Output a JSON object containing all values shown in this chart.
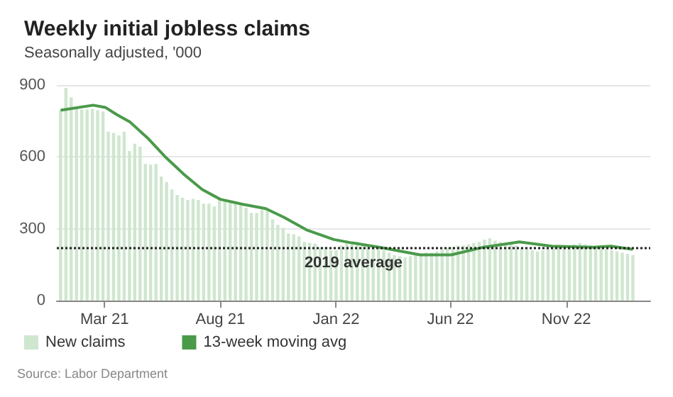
{
  "chart_data": {
    "type": "bar",
    "title": "Weekly initial jobless claims",
    "subtitle": "Seasonally adjusted, '000",
    "annotations": [
      "Source: Labor Department"
    ],
    "x": [
      "2021-01-02",
      "2021-01-09",
      "2021-01-16",
      "2021-01-23",
      "2021-01-30",
      "2021-02-06",
      "2021-02-13",
      "2021-02-20",
      "2021-02-27",
      "2021-03-06",
      "2021-03-13",
      "2021-03-20",
      "2021-03-27",
      "2021-04-03",
      "2021-04-10",
      "2021-04-17",
      "2021-04-24",
      "2021-05-01",
      "2021-05-08",
      "2021-05-15",
      "2021-05-22",
      "2021-05-29",
      "2021-06-05",
      "2021-06-12",
      "2021-06-19",
      "2021-06-26",
      "2021-07-03",
      "2021-07-10",
      "2021-07-17",
      "2021-07-24",
      "2021-07-31",
      "2021-08-07",
      "2021-08-14",
      "2021-08-21",
      "2021-08-28",
      "2021-09-04",
      "2021-09-11",
      "2021-09-18",
      "2021-09-25",
      "2021-10-02",
      "2021-10-09",
      "2021-10-16",
      "2021-10-23",
      "2021-10-30",
      "2021-11-06",
      "2021-11-13",
      "2021-11-20",
      "2021-11-27",
      "2021-12-04",
      "2021-12-11",
      "2021-12-18",
      "2021-12-25",
      "2022-01-01",
      "2022-01-08",
      "2022-01-15",
      "2022-01-22",
      "2022-01-29",
      "2022-02-05",
      "2022-02-12",
      "2022-02-19",
      "2022-02-26",
      "2022-03-05",
      "2022-03-12",
      "2022-03-19",
      "2022-03-26",
      "2022-04-02",
      "2022-04-09",
      "2022-04-16",
      "2022-04-23",
      "2022-04-30",
      "2022-05-07",
      "2022-05-14",
      "2022-05-21",
      "2022-05-28",
      "2022-06-04",
      "2022-06-11",
      "2022-06-18",
      "2022-06-25",
      "2022-07-02",
      "2022-07-09",
      "2022-07-16",
      "2022-07-23",
      "2022-07-30",
      "2022-08-06",
      "2022-08-13",
      "2022-08-20",
      "2022-08-27",
      "2022-09-03",
      "2022-09-10",
      "2022-09-17",
      "2022-09-24",
      "2022-10-01",
      "2022-10-08",
      "2022-10-15",
      "2022-10-22",
      "2022-10-29",
      "2022-11-05",
      "2022-11-12",
      "2022-11-19",
      "2022-11-26",
      "2022-12-03",
      "2022-12-10",
      "2022-12-17",
      "2022-12-24",
      "2022-12-31",
      "2023-01-07",
      "2023-01-14",
      "2023-01-21",
      "2023-01-28"
    ],
    "series": [
      {
        "name": "New claims",
        "color": "#cfe6cf",
        "values": [
          795,
          888,
          848,
          804,
          798,
          798,
          800,
          795,
          790,
          705,
          700,
          690,
          705,
          625,
          655,
          643,
          571,
          568,
          571,
          518,
          495,
          464,
          441,
          429,
          420,
          425,
          420,
          405,
          405,
          393,
          420,
          416,
          411,
          407,
          402,
          388,
          366,
          366,
          379,
          375,
          339,
          316,
          304,
          280,
          277,
          268,
          245,
          241,
          238,
          223,
          225,
          210,
          210,
          230,
          250,
          240,
          245,
          230,
          225,
          220,
          215,
          210,
          200,
          190,
          185,
          180,
          185,
          190,
          195,
          200,
          200,
          205,
          215,
          220,
          225,
          230,
          230,
          235,
          240,
          245,
          255,
          260,
          250,
          245,
          240,
          235,
          230,
          220,
          215,
          210,
          205,
          210,
          215,
          220,
          225,
          230,
          230,
          235,
          240,
          235,
          230,
          225,
          220,
          215,
          210,
          205,
          200,
          195,
          190
        ]
      },
      {
        "name": "13-week moving avg",
        "type": "line",
        "color": "#4a9a4a",
        "x": [
          "2021-01-02",
          "2021-02-14",
          "2021-03-02",
          "2021-03-17",
          "2021-04-04",
          "2021-04-27",
          "2021-05-21",
          "2021-06-14",
          "2021-07-08",
          "2021-08-01",
          "2021-08-31",
          "2021-09-30",
          "2021-10-24",
          "2021-11-23",
          "2021-12-29",
          "2022-01-22",
          "2022-02-27",
          "2022-04-22",
          "2022-06-02",
          "2022-07-15",
          "2022-08-31",
          "2022-10-13",
          "2022-12-06",
          "2022-12-30",
          "2023-01-28"
        ],
        "values": [
          795,
          816,
          807,
          777,
          745,
          679,
          598,
          527,
          464,
          423,
          402,
          384,
          348,
          295,
          255,
          241,
          223,
          191,
          191,
          223,
          245,
          227,
          223,
          227,
          214
        ]
      }
    ],
    "xlim": [
      "2020-12-28",
      "2023-02-20"
    ],
    "xticks": [
      {
        "value": "2021-03-01",
        "label": "Mar 21"
      },
      {
        "value": "2021-08-01",
        "label": "Aug 21"
      },
      {
        "value": "2022-01-01",
        "label": "Jan 22"
      },
      {
        "value": "2022-06-01",
        "label": "Jun 22"
      },
      {
        "value": "2022-11-01",
        "label": "Nov 22"
      }
    ],
    "ylim": [
      0,
      900
    ],
    "yticks": [
      0,
      300,
      600,
      900
    ],
    "ref_lines": [
      {
        "axis": "y",
        "value": 220,
        "label": "2019 average",
        "color": "#222222",
        "line_style": "dotted"
      }
    ],
    "grid": "y",
    "legend": "bottom left",
    "marker": "none",
    "line_style": "solid"
  }
}
